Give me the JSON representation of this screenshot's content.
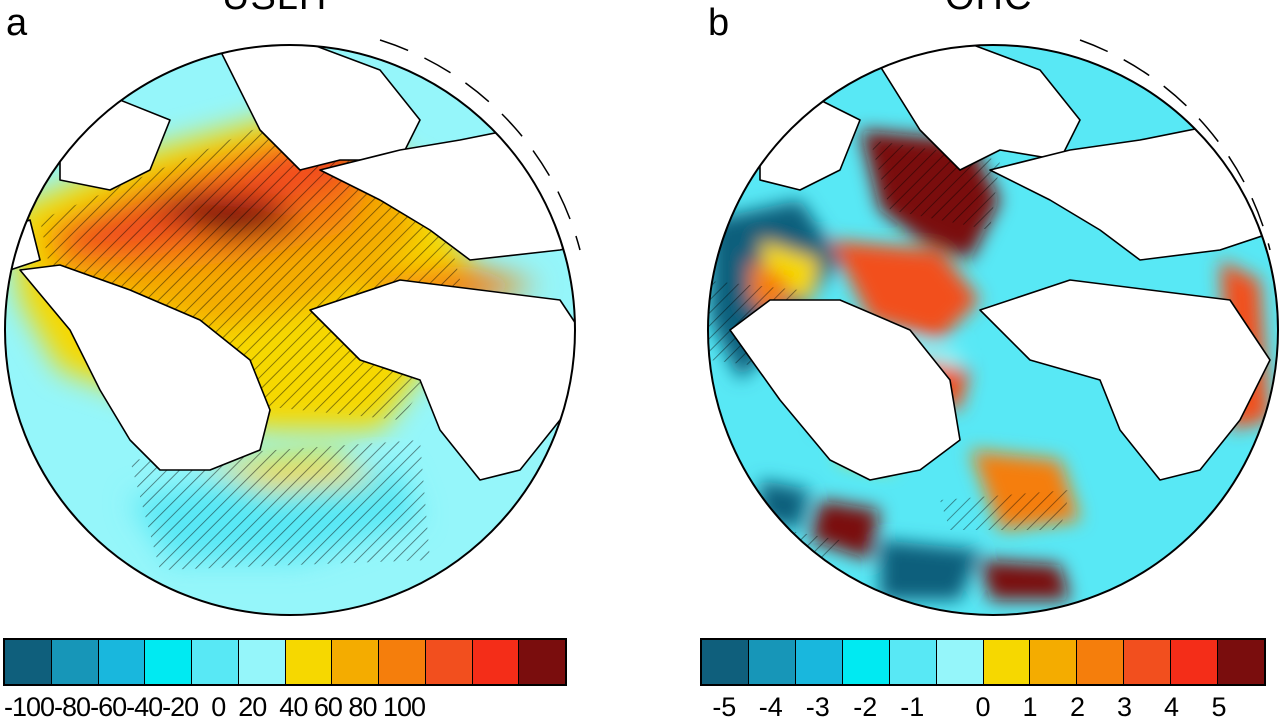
{
  "figure": {
    "panels": [
      {
        "letter": "a",
        "title": "USLH",
        "colorbar": {
          "ticks": [
            "-100",
            "-80",
            "-60",
            "-40",
            "-20",
            "0",
            "20",
            "40",
            "60",
            "80",
            "100"
          ],
          "colors": [
            "#0f5f7c",
            "#1796b8",
            "#19b7dd",
            "#00eaf2",
            "#58e8f5",
            "#95f6fa",
            "#f6d800",
            "#f4ac00",
            "#f57e0c",
            "#f24f1e",
            "#f42d18",
            "#7a0d0d"
          ]
        }
      },
      {
        "letter": "b",
        "title": "OHC",
        "colorbar": {
          "ticks": [
            "-5",
            "-4",
            "-3",
            "-2",
            "-1",
            "0",
            "1",
            "2",
            "3",
            "4",
            "5"
          ],
          "colors": [
            "#0f5f7c",
            "#1796b8",
            "#19b7dd",
            "#00eaf2",
            "#58e8f5",
            "#95f6fa",
            "#f6d800",
            "#f4ac00",
            "#f57e0c",
            "#f24f1e",
            "#f42d18",
            "#7a0d0d"
          ]
        }
      }
    ],
    "palette": {
      "deep_blue": "#0f5f7c",
      "blue": "#1796b8",
      "cyan": "#19b7dd",
      "aqua": "#58e8f5",
      "light_cyan": "#95f6fa",
      "yellow": "#f6d800",
      "gold": "#f4ac00",
      "orange": "#f57e0c",
      "red": "#f24f1e",
      "dark_red": "#7a0d0d",
      "land": "#ffffff",
      "coast": "#000000"
    }
  }
}
